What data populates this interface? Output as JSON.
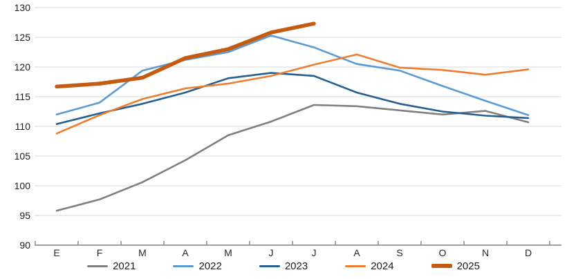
{
  "chart_data": {
    "type": "line",
    "title": "",
    "xlabel": "",
    "ylabel": "",
    "categories": [
      "E",
      "F",
      "M",
      "A",
      "M",
      "J",
      "J",
      "A",
      "S",
      "O",
      "N",
      "D"
    ],
    "series": [
      {
        "name": "2021",
        "color": "#7F7F7F",
        "stroke_width": 2.6,
        "values": [
          95.8,
          97.7,
          100.6,
          104.3,
          108.5,
          110.8,
          113.6,
          113.4,
          112.7,
          112.0,
          112.6,
          110.7
        ]
      },
      {
        "name": "2022",
        "color": "#5B9BD5",
        "stroke_width": 2.6,
        "values": [
          112.0,
          114.0,
          119.4,
          121.2,
          122.5,
          125.3,
          123.3,
          120.5,
          119.4,
          116.8,
          114.3,
          111.9
        ]
      },
      {
        "name": "2023",
        "color": "#255E91",
        "stroke_width": 2.6,
        "values": [
          110.4,
          112.2,
          113.8,
          115.7,
          118.1,
          119.0,
          118.5,
          115.7,
          113.8,
          112.5,
          111.8,
          111.4
        ]
      },
      {
        "name": "2024",
        "color": "#ED7D31",
        "stroke_width": 2.6,
        "values": [
          108.8,
          111.9,
          114.6,
          116.4,
          117.2,
          118.5,
          120.4,
          122.1,
          119.9,
          119.5,
          118.7,
          119.6
        ]
      },
      {
        "name": "2025",
        "color": "#C55A11",
        "stroke_width": 5.5,
        "values": [
          116.7,
          117.2,
          118.2,
          121.5,
          123.0,
          125.8,
          127.3
        ]
      }
    ],
    "y_axis": {
      "min": 90,
      "max": 130,
      "step": 5,
      "tick_labels": [
        "90",
        "95",
        "100",
        "105",
        "110",
        "115",
        "120",
        "125",
        "130"
      ]
    },
    "x_axis": {
      "tick_labels": [
        "E",
        "F",
        "M",
        "A",
        "M",
        "J",
        "J",
        "A",
        "S",
        "O",
        "N",
        "D"
      ]
    },
    "grid": "horizontal",
    "gridline_color": "#D9D9D9",
    "axis_line_color": "#808080",
    "legend_position": "bottom",
    "legend_labels": [
      "2021",
      "2022",
      "2023",
      "2024",
      "2025"
    ]
  }
}
